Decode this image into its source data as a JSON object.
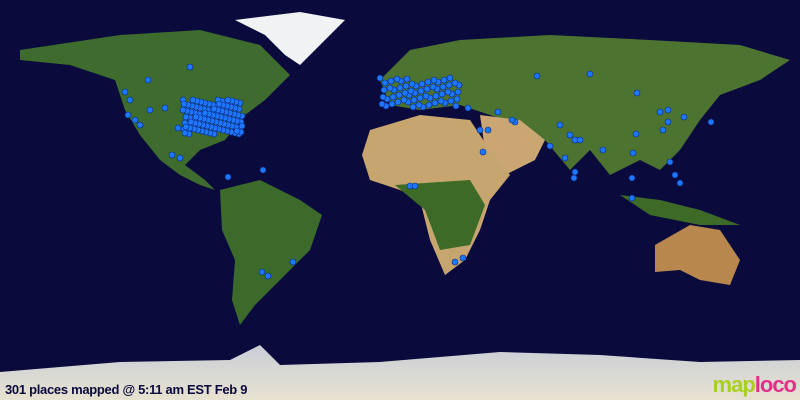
{
  "caption": "301 places mapped @ 5:11 am EST Feb 9",
  "logo": {
    "part1": "map",
    "part2": "loco"
  },
  "colors": {
    "ocean": "#0a0a3c",
    "marker": "#1e78ff",
    "land": "#3f6a2a",
    "desert": "#c8a870",
    "ice": "#e8ecef"
  }
}
